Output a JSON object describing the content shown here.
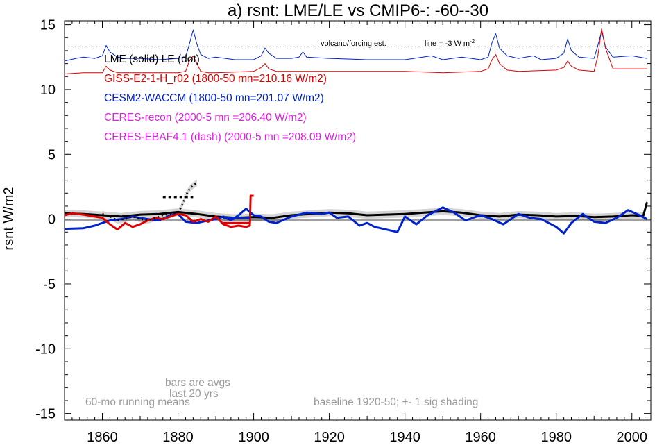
{
  "chart_data": {
    "type": "line",
    "title": "a) rsnt: LME/LE vs CMIP6-: -60--30",
    "ylabel": "rsnt W/m2",
    "xlabel": "",
    "xlim": [
      1850,
      2005
    ],
    "ylim": [
      -15.5,
      15.3
    ],
    "xticks": [
      1860,
      1880,
      1900,
      1920,
      1940,
      1960,
      1980,
      2000
    ],
    "yticks": [
      15,
      10,
      5,
      0,
      -5,
      -10,
      -15
    ],
    "grid": false,
    "legend_location": "top-left",
    "colors": {
      "lme": "#000000",
      "giss": "#dd0000",
      "cesm": "#0022cc",
      "ceres": "#e020e0",
      "note": "#9a9a9a",
      "shade": "#d4d4d4"
    },
    "legend": [
      {
        "text": "LME (solid)   LE (dot)",
        "color": "#000000"
      },
      {
        "text": "GISS-E2-1-H_r02 (1800-50 mn=210.16 W/m2)",
        "color": "#dd0000"
      },
      {
        "text": "CESM2-WACCM (1800-50 mn=201.07 W/m2)",
        "color": "#0022cc"
      },
      {
        "text": "CERES-recon (2000-5 mn =206.40 W/m2)",
        "color": "#e020e0"
      },
      {
        "text": "CERES-EBAF4.1 (dash) (2000-5 mn =208.09 W/m2)",
        "color": "#e020e0"
      }
    ],
    "annotations": {
      "volcano": "volcano/forcing est.",
      "line": "line = -3 W m",
      "line_sup": "-2",
      "bars1": "bars are avgs",
      "bars2": "last 20 yrs",
      "running": "60-mo running means",
      "baseline": "baseline 1920-50; +- 1 sig shading"
    },
    "reference_line": {
      "y": 13.3,
      "style": "dotted"
    },
    "series": [
      {
        "name": "CESM2-WACCM forcing",
        "color": "#0022cc",
        "x": [
          1850,
          1853,
          1855,
          1858,
          1860,
          1861,
          1862,
          1864,
          1866,
          1870,
          1875,
          1880,
          1882,
          1883,
          1884,
          1885,
          1886,
          1888,
          1890,
          1895,
          1900,
          1902,
          1903,
          1904,
          1906,
          1910,
          1912,
          1913,
          1914,
          1920,
          1930,
          1940,
          1947,
          1950,
          1955,
          1960,
          1962,
          1963,
          1964,
          1965,
          1967,
          1970,
          1974,
          1976,
          1980,
          1982,
          1983,
          1984,
          1986,
          1990,
          1991,
          1992,
          1993,
          1995,
          2000,
          2004
        ],
        "y": [
          12.2,
          12.4,
          12.5,
          12.4,
          12.6,
          13.4,
          12.9,
          12.5,
          12.4,
          12.4,
          12.3,
          12.4,
          12.5,
          13.5,
          14.6,
          13.5,
          12.7,
          12.4,
          12.5,
          12.3,
          12.3,
          12.6,
          13.2,
          12.8,
          12.4,
          12.4,
          12.5,
          12.9,
          12.5,
          12.4,
          12.3,
          12.3,
          12.6,
          12.3,
          12.5,
          12.3,
          12.5,
          13.6,
          14.3,
          13.2,
          12.6,
          12.4,
          12.6,
          12.3,
          12.4,
          12.8,
          13.9,
          13.0,
          12.5,
          12.4,
          13.4,
          14.5,
          13.3,
          12.5,
          12.6,
          12.4
        ]
      },
      {
        "name": "GISS forcing",
        "color": "#dd0000",
        "x": [
          1850,
          1855,
          1860,
          1861,
          1862,
          1864,
          1870,
          1880,
          1882,
          1883,
          1884,
          1885,
          1886,
          1888,
          1890,
          1900,
          1902,
          1903,
          1904,
          1906,
          1910,
          1920,
          1930,
          1940,
          1950,
          1960,
          1962,
          1963,
          1964,
          1965,
          1967,
          1970,
          1980,
          1982,
          1983,
          1984,
          1986,
          1990,
          1991,
          1992,
          1993,
          1995,
          2000,
          2004
        ],
        "y": [
          11.2,
          11.3,
          11.3,
          11.8,
          11.5,
          11.3,
          11.3,
          11.3,
          11.4,
          12.2,
          12.6,
          12.0,
          11.4,
          11.3,
          11.3,
          11.4,
          11.7,
          12.0,
          11.6,
          11.4,
          11.4,
          11.4,
          11.4,
          11.4,
          11.3,
          11.4,
          11.6,
          12.3,
          12.7,
          12.0,
          11.5,
          11.4,
          11.5,
          11.7,
          12.2,
          11.8,
          11.5,
          11.4,
          12.6,
          14.7,
          13.2,
          11.6,
          11.6,
          11.6
        ]
      },
      {
        "name": "LME",
        "color": "#000000",
        "x": [
          1850,
          1855,
          1860,
          1865,
          1870,
          1875,
          1880,
          1885,
          1890,
          1895,
          1900,
          1905,
          1910,
          1915,
          1920,
          1925,
          1930,
          1935,
          1940,
          1945,
          1950,
          1955,
          1960,
          1965,
          1970,
          1975,
          1980,
          1985,
          1990,
          1995,
          2000,
          2003,
          2004
        ],
        "y": [
          0.45,
          0.4,
          0.3,
          0.2,
          0.35,
          0.4,
          0.55,
          0.4,
          0.2,
          0.1,
          0.15,
          0.1,
          0.3,
          0.4,
          0.5,
          0.45,
          0.3,
          0.35,
          0.4,
          0.5,
          0.6,
          0.5,
          0.3,
          0.2,
          0.35,
          0.3,
          0.2,
          0.25,
          0.15,
          0.2,
          0.3,
          0.25,
          1.3
        ]
      },
      {
        "name": "CESM2-WACCM",
        "color": "#0022cc",
        "x": [
          1850,
          1855,
          1858,
          1860,
          1862,
          1865,
          1868,
          1870,
          1872,
          1875,
          1878,
          1880,
          1882,
          1885,
          1888,
          1890,
          1892,
          1894,
          1896,
          1898,
          1900,
          1902,
          1904,
          1906,
          1910,
          1914,
          1918,
          1920,
          1922,
          1925,
          1928,
          1930,
          1932,
          1935,
          1938,
          1940,
          1943,
          1946,
          1950,
          1953,
          1956,
          1960,
          1963,
          1966,
          1970,
          1973,
          1976,
          1978,
          1980,
          1982,
          1984,
          1987,
          1990,
          1993,
          1996,
          1999,
          2002,
          2004
        ],
        "y": [
          -0.75,
          -0.7,
          -0.5,
          -0.3,
          -0.1,
          0.0,
          0.2,
          0.1,
          0.0,
          -0.1,
          0.3,
          0.4,
          -0.2,
          -0.3,
          -0.1,
          0.0,
          0.2,
          -0.1,
          0.3,
          0.8,
          0.3,
          0.2,
          -0.2,
          -0.3,
          0.2,
          0.5,
          0.4,
          0.5,
          0.1,
          0.2,
          -0.5,
          -0.3,
          -0.6,
          -0.8,
          -1.0,
          0.2,
          -0.4,
          0.3,
          0.9,
          0.5,
          -0.1,
          0.3,
          0.0,
          -0.4,
          0.4,
          0.1,
          0.0,
          -0.3,
          -0.6,
          -1.1,
          -0.3,
          0.4,
          -0.2,
          -0.3,
          0.1,
          0.7,
          0.3,
          0.0
        ]
      },
      {
        "name": "GISS-E2-1-H_r02",
        "color": "#dd0000",
        "x": [
          1850,
          1852,
          1855,
          1858,
          1860,
          1862,
          1864,
          1866,
          1868,
          1870,
          1872,
          1874,
          1876,
          1878,
          1880,
          1882,
          1884,
          1886,
          1888,
          1890,
          1892,
          1894,
          1896,
          1898,
          1899,
          1899.2,
          1900
        ],
        "y": [
          0.3,
          0.45,
          0.35,
          0.2,
          0.1,
          -0.4,
          -0.8,
          -0.3,
          -0.6,
          -0.4,
          -0.1,
          0.1,
          0.0,
          0.2,
          0.4,
          0.3,
          -0.2,
          0.0,
          -0.2,
          0.2,
          -0.4,
          -0.6,
          -0.5,
          -0.6,
          -0.5,
          1.8,
          1.8
        ]
      }
    ],
    "le_dotted": {
      "x": [
        1860,
        1862,
        1864,
        1866,
        1868,
        1870,
        1872,
        1874,
        1876,
        1878,
        1880,
        1881,
        1882,
        1883,
        1884,
        1885
      ],
      "y": [
        0.4,
        0.2,
        -0.1,
        0.0,
        0.2,
        0.0,
        -0.1,
        0.1,
        0.3,
        0.4,
        0.5,
        1.0,
        1.8,
        2.3,
        2.6,
        2.8
      ]
    },
    "avg_bars": [
      {
        "color": "#000000",
        "style": "dotted",
        "x0": 1876,
        "x1": 1884,
        "y": 1.7
      },
      {
        "color": "#0022cc",
        "style": "solid",
        "x0": 1892,
        "x1": 1899,
        "y": 0.1
      },
      {
        "color": "#dd0000",
        "style": "solid",
        "x0": 1892,
        "x1": 1899,
        "y": -0.3
      }
    ]
  }
}
